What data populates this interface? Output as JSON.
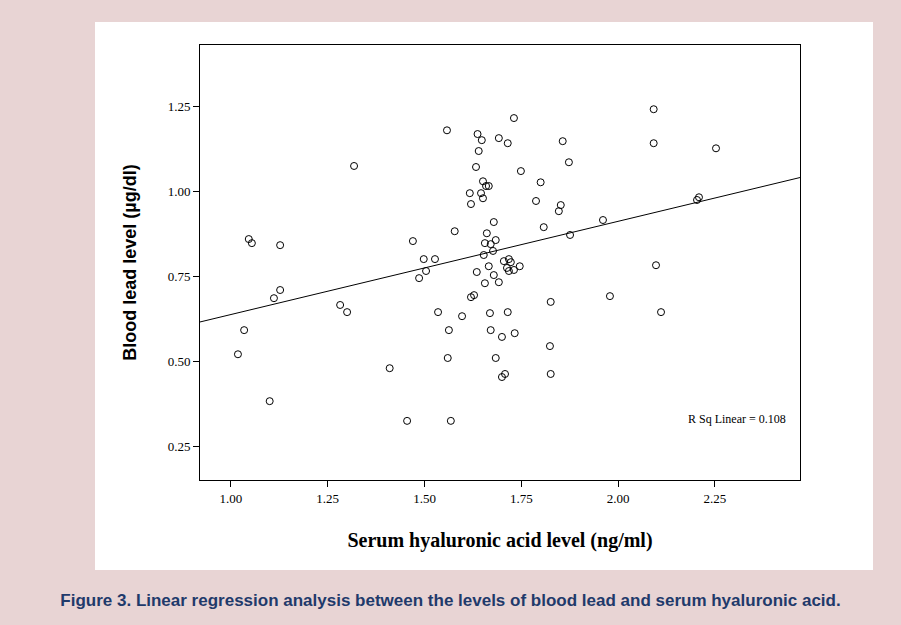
{
  "chart_data": {
    "type": "scatter",
    "caption": "Figure 3. Linear regression analysis between the levels of blood lead and serum hyaluronic acid.",
    "x_label": "Serum hyaluronic acid level (ng/ml)",
    "y_label": "Blood lead level (µg/dl)",
    "annotation": "R Sq Linear = 0.108",
    "color": "#000000",
    "marker": "circle-open",
    "grid": false,
    "xlim": [
      0.92,
      2.47
    ],
    "ylim": [
      0.15,
      1.43
    ],
    "xticks": [
      {
        "value": 1,
        "label": "1.00"
      },
      {
        "value": 1.25,
        "label": "1.25"
      },
      {
        "value": 1.5,
        "label": "1.50"
      },
      {
        "value": 1.75,
        "label": "1.75"
      },
      {
        "value": 2,
        "label": "2.00"
      },
      {
        "value": 2.25,
        "label": "2.25"
      }
    ],
    "yticks": [
      {
        "value": 0.25,
        "label": "0.25"
      },
      {
        "value": 0.5,
        "label": "0.50"
      },
      {
        "value": 0.75,
        "label": "0.75"
      },
      {
        "value": 1,
        "label": "1.00"
      },
      {
        "value": 1.25,
        "label": "1.25"
      }
    ],
    "trend_line": {
      "x": [
        0.92,
        2.47
      ],
      "y": [
        0.615,
        1.04
      ]
    },
    "x": [
      1.018,
      1.034,
      1.046,
      1.054,
      1.1,
      1.111,
      1.127,
      1.127,
      1.282,
      1.3,
      1.318,
      1.41,
      1.455,
      1.47,
      1.486,
      1.498,
      1.504,
      1.527,
      1.535,
      1.558,
      1.56,
      1.563,
      1.568,
      1.578,
      1.597,
      1.617,
      1.62,
      1.62,
      1.628,
      1.633,
      1.635,
      1.637,
      1.64,
      1.646,
      1.648,
      1.651,
      1.651,
      1.653,
      1.656,
      1.656,
      1.659,
      1.661,
      1.666,
      1.666,
      1.669,
      1.671,
      1.671,
      1.677,
      1.679,
      1.679,
      1.684,
      1.684,
      1.692,
      1.692,
      1.7,
      1.7,
      1.705,
      1.708,
      1.713,
      1.715,
      1.715,
      1.718,
      1.718,
      1.723,
      1.731,
      1.731,
      1.733,
      1.746,
      1.749,
      1.788,
      1.8,
      1.808,
      1.824,
      1.826,
      1.826,
      1.847,
      1.852,
      1.857,
      1.873,
      1.876,
      1.961,
      1.979,
      2.092,
      2.092,
      2.098,
      2.111,
      2.204,
      2.209,
      2.253
    ],
    "values": [
      0.52,
      0.591,
      0.859,
      0.847,
      0.382,
      0.685,
      0.709,
      0.841,
      0.665,
      0.644,
      1.074,
      0.479,
      0.324,
      0.853,
      0.744,
      0.8,
      0.765,
      0.8,
      0.644,
      1.179,
      0.509,
      0.591,
      0.324,
      0.882,
      0.632,
      0.994,
      0.962,
      0.688,
      0.694,
      1.071,
      0.762,
      1.168,
      1.118,
      0.994,
      1.15,
      1.029,
      0.979,
      0.812,
      0.847,
      0.729,
      1.015,
      0.876,
      1.015,
      0.779,
      0.641,
      0.844,
      0.591,
      0.824,
      0.909,
      0.753,
      0.509,
      0.856,
      0.732,
      1.156,
      0.453,
      0.571,
      0.794,
      0.462,
      0.774,
      1.141,
      0.644,
      0.8,
      0.765,
      0.791,
      1.215,
      0.768,
      0.582,
      0.779,
      1.059,
      0.971,
      1.026,
      0.894,
      0.544,
      0.462,
      0.674,
      0.941,
      0.959,
      1.147,
      1.085,
      0.871,
      0.915,
      0.691,
      1.241,
      1.141,
      0.782,
      0.644,
      0.974,
      0.982,
      1.126
    ]
  }
}
